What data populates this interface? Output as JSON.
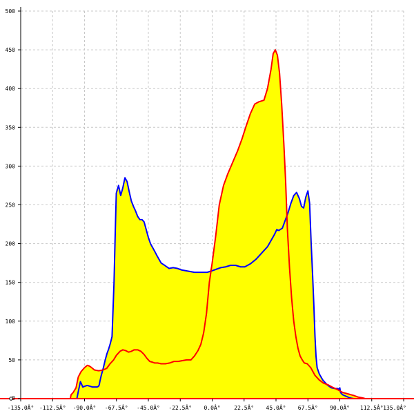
{
  "chart_data": {
    "type": "area",
    "title": "",
    "xlabel": "",
    "ylabel": "",
    "xlim": [
      -135,
      135
    ],
    "ylim": [
      0,
      500
    ],
    "grid": true,
    "x_ticks": [
      -135,
      -112.5,
      -90,
      -67.5,
      -45,
      -22.5,
      0,
      22.5,
      45,
      67.5,
      90,
      112.5,
      135
    ],
    "x_tick_labels": [
      "-135.0Â°",
      "-112.5Â°",
      "-90.0Â°",
      "-67.5Â°",
      "-45.0Â°",
      "-22.5Â°",
      "0.0Â°",
      "22.5Â°",
      "45.0Â°",
      "67.5Â°",
      "90.0Â°",
      "112.5Â°",
      "135.0Â°"
    ],
    "y_ticks": [
      0,
      50,
      100,
      150,
      200,
      250,
      300,
      350,
      400,
      450,
      500
    ],
    "y_tick_labels": [
      "0",
      "50",
      "100",
      "150",
      "200",
      "250",
      "300",
      "350",
      "400",
      "450",
      "500"
    ],
    "colors": {
      "fill": "#ffff00",
      "series_1": "#0000ff",
      "series_2": "#ff0000",
      "axis": "#000000",
      "grid": "#c8c8c8"
    },
    "series": [
      {
        "color": "#0000ff",
        "x": [
          -100,
          -95.4,
          -94.3,
          -92.9,
          -91.2,
          -89.9,
          -88.1,
          -86.1,
          -84.4,
          -82.7,
          -81.2,
          -80.1,
          -79.6,
          -79.2,
          -78.2,
          -76.7,
          -75.4,
          -74.2,
          -73.0,
          -72.0,
          -70.6,
          -69.2,
          -68.4,
          -67.6,
          -66.0,
          -64.5,
          -63.0,
          -61.5,
          -60.0,
          -58.5,
          -57.0,
          -55.5,
          -54.0,
          -52.5,
          -51.0,
          -49.5,
          -48.0,
          -46.5,
          -45.0,
          -43.5,
          -42.0,
          -40.5,
          -38.5,
          -36.0,
          -33.5,
          -30.4,
          -27.5,
          -24.5,
          -21.5,
          -18.5,
          -15.5,
          -12.5,
          -9.5,
          -6.5,
          -3.5,
          0,
          3.0,
          6.0,
          9.5,
          13.0,
          16.5,
          20.0,
          23.0,
          27.0,
          31.0,
          35.0,
          39.0,
          41.5,
          44.0,
          45.5,
          47.0,
          49.5,
          51.5,
          53.5,
          55.5,
          57.5,
          59.5,
          61.5,
          63.0,
          64.5,
          66.0,
          67.5,
          68.7,
          69.8,
          70.8,
          71.7,
          72.5,
          73.2,
          74.0,
          75.5,
          78.0,
          81.0,
          84.0,
          86.5,
          88.5,
          89.5,
          90.0,
          90.5,
          92.0,
          94.5,
          97.0,
          100.0,
          103.0,
          106.0
        ],
        "y": [
          0,
          0,
          10,
          22,
          15,
          16,
          17,
          16,
          15,
          15,
          15,
          16,
          18,
          22,
          30,
          40,
          50,
          58,
          64,
          70,
          80,
          150,
          210,
          265,
          275,
          262,
          272,
          285,
          280,
          267,
          255,
          248,
          242,
          235,
          231,
          231,
          228,
          218,
          208,
          200,
          195,
          190,
          183,
          175,
          172,
          168,
          169,
          168,
          166,
          165,
          164,
          163,
          163,
          163,
          163,
          165,
          167,
          169,
          170,
          172,
          172,
          170,
          170,
          174,
          180,
          188,
          196,
          204,
          212,
          218,
          217,
          220,
          230,
          240,
          252,
          262,
          266,
          258,
          248,
          246,
          260,
          268,
          252,
          200,
          160,
          120,
          80,
          55,
          40,
          32,
          24,
          18,
          14,
          13,
          13,
          12,
          14,
          8,
          5,
          3,
          1,
          0,
          0,
          0
        ]
      },
      {
        "color": "#ff0000",
        "x": [
          -100,
          -99.5,
          -98.0,
          -96.0,
          -94.4,
          -92.4,
          -90.0,
          -88.0,
          -86.5,
          -85.0,
          -83.0,
          -80.0,
          -77.0,
          -74.4,
          -72.0,
          -69.5,
          -67.5,
          -65.0,
          -63.0,
          -61.0,
          -59.0,
          -57.0,
          -55.0,
          -52.5,
          -50.2,
          -48.0,
          -46.0,
          -44.0,
          -42.0,
          -40.5,
          -38.5,
          -36.0,
          -33.0,
          -30.0,
          -27.0,
          -24.0,
          -21.0,
          -18.0,
          -15.0,
          -12.5,
          -10.0,
          -8.0,
          -6.0,
          -4.0,
          -2.0,
          0,
          2.5,
          5.0,
          8.0,
          11.0,
          14.5,
          18.0,
          21.0,
          24.0,
          27.0,
          30.0,
          33.0,
          36.5,
          39.0,
          41.5,
          43.0,
          44.5,
          46.0,
          47.5,
          49.0,
          50.5,
          51.8,
          53.0,
          54.5,
          56.0,
          57.5,
          59.0,
          60.5,
          62.0,
          63.5,
          65.0,
          67.0,
          69.5,
          72.5,
          75.5,
          78.5,
          81.5,
          84.5,
          88.0,
          92.0,
          96.0,
          100.0,
          103.0,
          106.0,
          108.0
        ],
        "y": [
          0,
          5,
          8,
          14,
          28,
          35,
          40,
          43,
          42,
          40,
          37,
          36,
          37,
          39,
          45,
          50,
          56,
          61,
          63,
          62,
          60,
          61,
          63,
          63,
          61,
          57,
          52,
          48,
          47,
          46,
          46,
          45,
          45,
          46,
          48,
          48,
          49,
          50,
          50,
          55,
          62,
          70,
          85,
          110,
          150,
          175,
          210,
          250,
          275,
          290,
          305,
          320,
          335,
          352,
          368,
          380,
          383,
          385,
          400,
          425,
          445,
          450,
          443,
          420,
          380,
          330,
          280,
          220,
          170,
          130,
          100,
          80,
          65,
          55,
          50,
          46,
          45,
          40,
          30,
          24,
          20,
          18,
          15,
          12,
          8,
          6,
          4,
          2,
          1,
          0
        ]
      }
    ]
  }
}
